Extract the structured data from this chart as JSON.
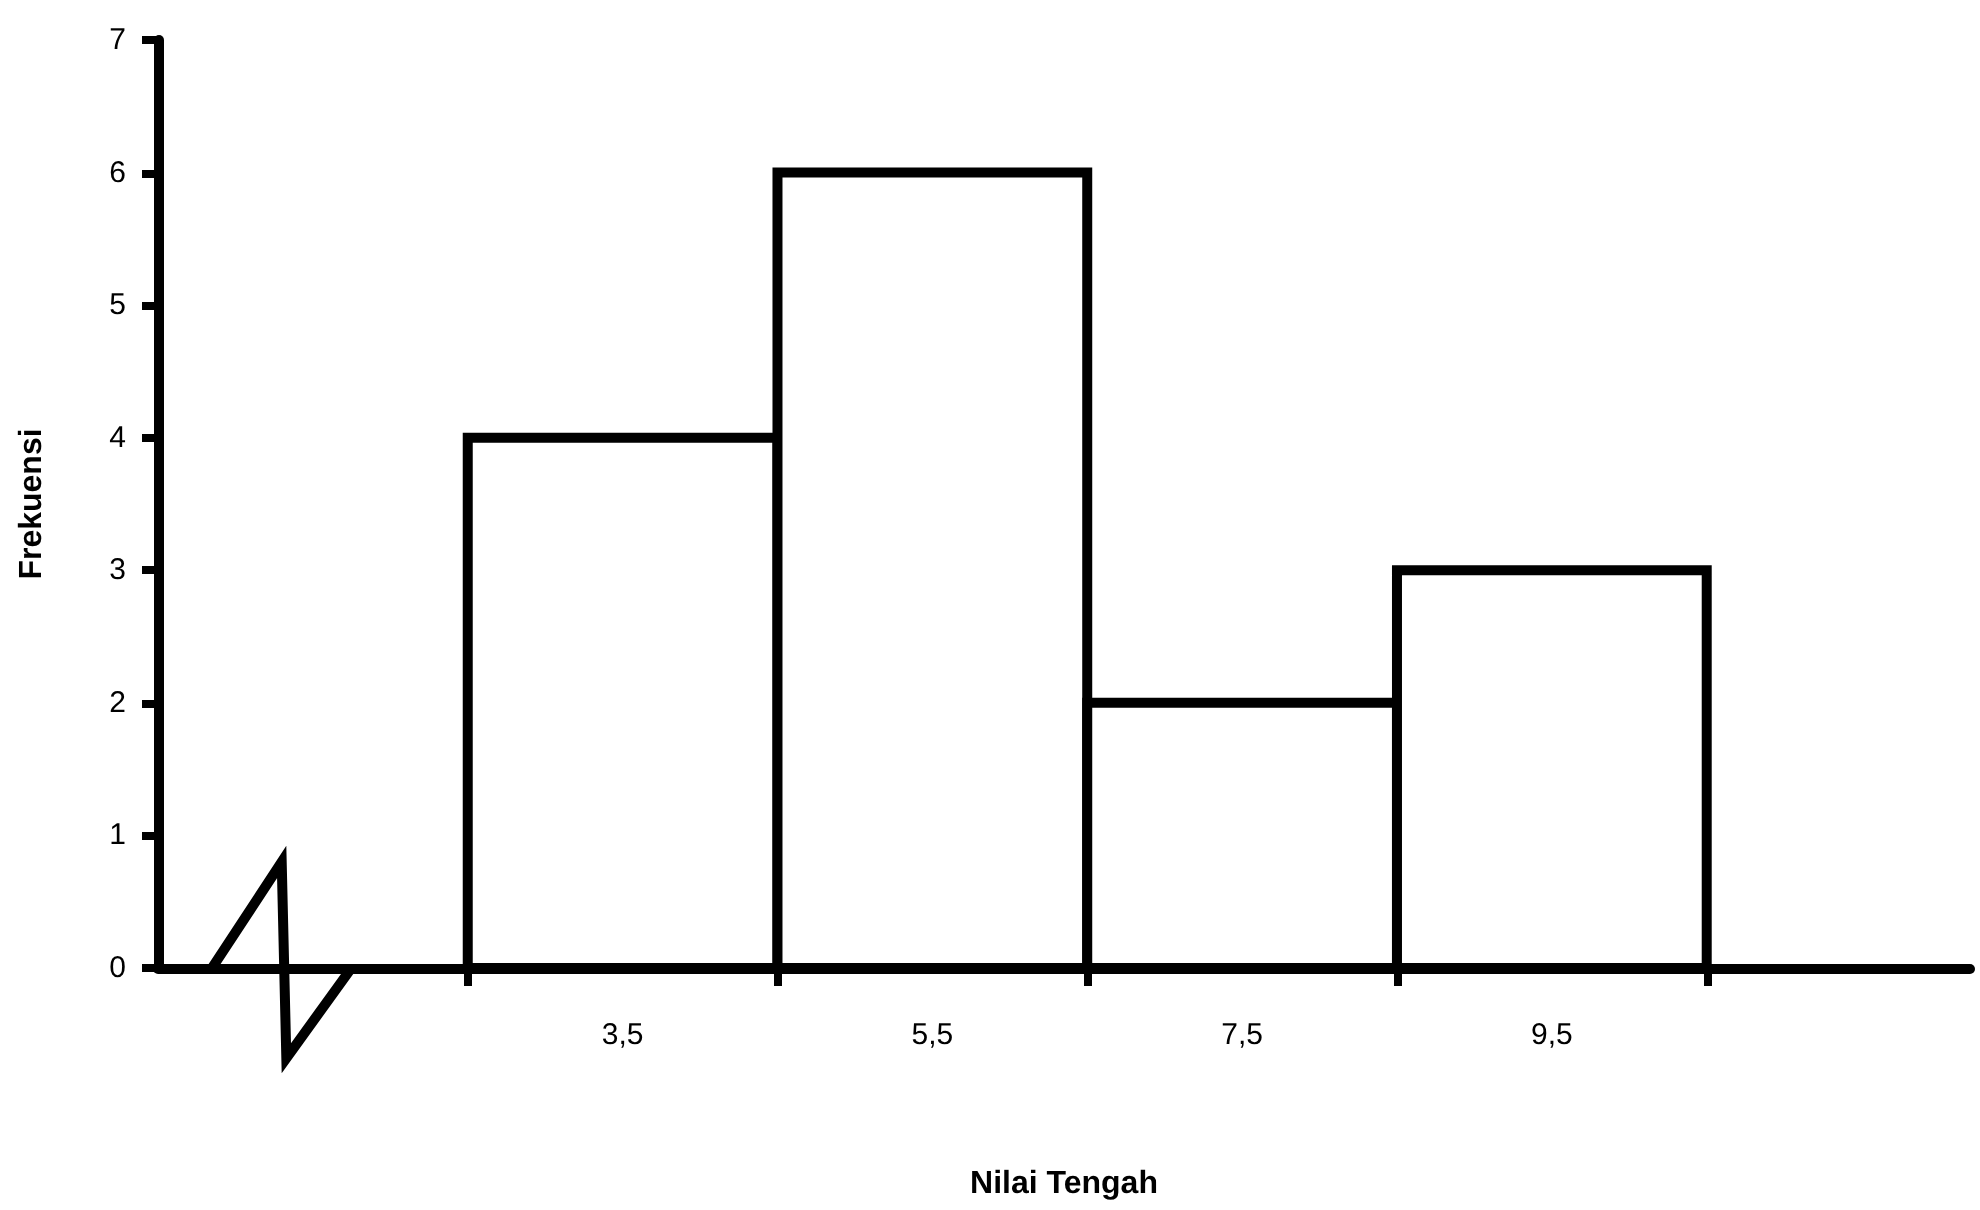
{
  "chart_data": {
    "type": "histogram",
    "xlabel": "Nilai Tengah",
    "ylabel": "Frekuensi",
    "bins": [
      2.5,
      4.5,
      6.5,
      8.5,
      10.5
    ],
    "values": [
      4,
      6,
      2,
      3
    ],
    "color": "#ffffff",
    "xlim": [
      0.5,
      12.2
    ],
    "xticks": [
      {
        "value": 2.5,
        "label": null
      },
      {
        "value": 3.5,
        "label": "3,5"
      },
      {
        "value": 4.5,
        "label": null
      },
      {
        "value": 5.5,
        "label": "5,5"
      },
      {
        "value": 6.5,
        "label": null
      },
      {
        "value": 7.5,
        "label": "7,5"
      },
      {
        "value": 8.5,
        "label": null
      },
      {
        "value": 9.5,
        "label": "9,5"
      },
      {
        "value": 10.5,
        "label": null
      }
    ],
    "ylim": [
      0,
      7
    ],
    "yticks": [
      0,
      1,
      2,
      3,
      4,
      5,
      6,
      7
    ],
    "grid": false
  }
}
